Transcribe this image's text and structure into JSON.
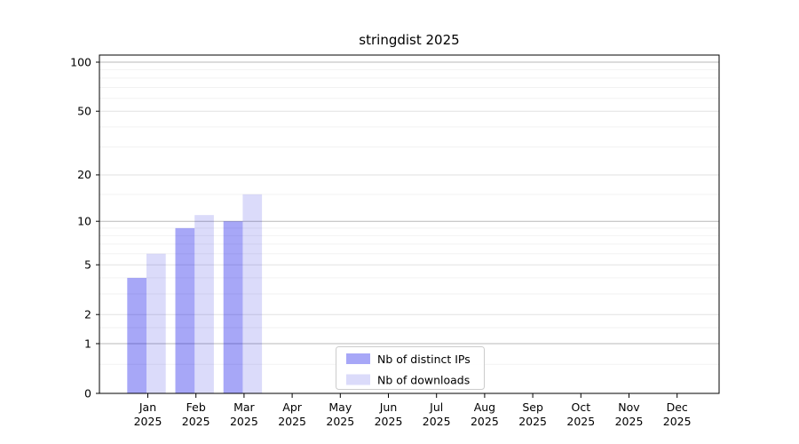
{
  "chart": {
    "title": "stringdist 2025"
  },
  "chart_data": {
    "type": "bar",
    "title": "stringdist 2025",
    "year_label": "2025",
    "months": [
      "Jan",
      "Feb",
      "Mar",
      "Apr",
      "May",
      "Jun",
      "Jul",
      "Aug",
      "Sep",
      "Oct",
      "Nov",
      "Dec"
    ],
    "categories": [
      "Jan 2025",
      "Feb 2025",
      "Mar 2025",
      "Apr 2025",
      "May 2025",
      "Jun 2025",
      "Jul 2025",
      "Aug 2025",
      "Sep 2025",
      "Oct 2025",
      "Nov 2025",
      "Dec 2025"
    ],
    "series": [
      {
        "name": "Nb of distinct IPs",
        "color": "rgba(0,0,232,0.345)",
        "values": [
          4,
          9,
          10,
          0,
          0,
          0,
          0,
          0,
          0,
          0,
          0,
          0
        ]
      },
      {
        "name": "Nb of downloads",
        "color": "rgba(0,0,220,0.14)",
        "values": [
          6,
          11,
          15,
          0,
          0,
          0,
          0,
          0,
          0,
          0,
          0,
          0
        ]
      }
    ],
    "y_axis": {
      "scale": "log1p",
      "tick_labels": [
        "0",
        "1",
        "2",
        "5",
        "10",
        "20",
        "50",
        "100"
      ],
      "ticks": [
        0,
        1,
        2,
        5,
        10,
        20,
        50,
        100
      ],
      "decade_gridlines": [
        1,
        10,
        100
      ],
      "submajor_gridlines": [
        2,
        5,
        20,
        50
      ],
      "minor_gridlines": [
        0.5,
        1.5,
        3,
        4,
        6,
        7,
        8,
        9,
        15,
        30,
        40,
        60,
        70,
        80,
        90
      ],
      "max_value": 100
    },
    "legend": {
      "position": "lower center",
      "items": [
        "Nb of distinct IPs",
        "Nb of downloads"
      ]
    },
    "style_colors": {
      "grid_decade": "#b9b9b9",
      "grid_submajor": "#e2e2e2",
      "grid_minor": "#f2f2f2",
      "spine": "#000000",
      "legend_border": "#cccccc",
      "legend_background": "rgba(255,255,255,0.9)"
    }
  }
}
